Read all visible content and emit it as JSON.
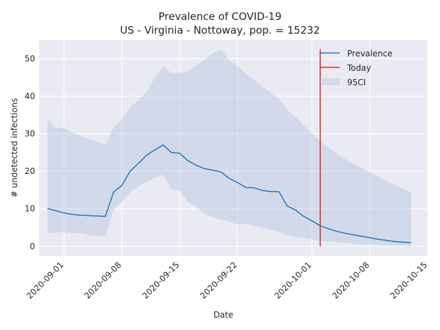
{
  "chart_data": {
    "type": "line",
    "title": "Prevalence of COVID-19",
    "subtitle": "US - Virginia - Nottoway, pop. = 15232",
    "xlabel": "Date",
    "ylabel": "# undetected infections",
    "xlim": [
      "2020-08-29",
      "2020-10-15"
    ],
    "ylim": [
      -2.5,
      55
    ],
    "grid": true,
    "legend_position": "top-right",
    "x_ticks": [
      "2020-09-01",
      "2020-09-08",
      "2020-09-15",
      "2020-09-22",
      "2020-10-01",
      "2020-10-08",
      "2020-10-15"
    ],
    "y_ticks": [
      0,
      10,
      20,
      30,
      40,
      50
    ],
    "series": [
      {
        "name": "Prevalence",
        "color": "#1f77b4",
        "x": [
          "2020-08-30",
          "2020-08-31",
          "2020-09-01",
          "2020-09-02",
          "2020-09-03",
          "2020-09-04",
          "2020-09-05",
          "2020-09-06",
          "2020-09-07",
          "2020-09-08",
          "2020-09-09",
          "2020-09-10",
          "2020-09-11",
          "2020-09-12",
          "2020-09-13",
          "2020-09-14",
          "2020-09-15",
          "2020-09-16",
          "2020-09-17",
          "2020-09-18",
          "2020-09-19",
          "2020-09-20",
          "2020-09-21",
          "2020-09-22",
          "2020-09-23",
          "2020-09-24",
          "2020-09-25",
          "2020-09-26",
          "2020-09-27",
          "2020-09-28",
          "2020-09-29",
          "2020-09-30",
          "2020-10-01",
          "2020-10-02",
          "2020-10-03",
          "2020-10-04",
          "2020-10-05",
          "2020-10-06",
          "2020-10-07",
          "2020-10-08",
          "2020-10-09",
          "2020-10-10",
          "2020-10-11",
          "2020-10-12",
          "2020-10-13"
        ],
        "values": [
          10.1,
          9.5,
          8.9,
          8.5,
          8.3,
          8.2,
          8.1,
          8.0,
          14.5,
          16.2,
          20.0,
          22.1,
          24.3,
          25.7,
          27.0,
          25.0,
          24.8,
          22.8,
          21.6,
          20.7,
          20.3,
          19.8,
          18.1,
          17.0,
          15.7,
          15.6,
          14.9,
          14.6,
          14.6,
          10.8,
          9.7,
          8.0,
          6.8,
          5.5,
          4.7,
          4.0,
          3.5,
          3.1,
          2.7,
          2.3,
          1.9,
          1.6,
          1.3,
          1.1,
          1.0
        ]
      },
      {
        "name": "Today",
        "color": "#d62728",
        "x": "2020-10-02",
        "y_range": [
          0,
          52.5
        ]
      },
      {
        "name": "95CI",
        "color": "#b0c4de",
        "x": [
          "2020-08-30",
          "2020-08-31",
          "2020-09-01",
          "2020-09-02",
          "2020-09-03",
          "2020-09-04",
          "2020-09-05",
          "2020-09-06",
          "2020-09-07",
          "2020-09-08",
          "2020-09-09",
          "2020-09-10",
          "2020-09-11",
          "2020-09-12",
          "2020-09-13",
          "2020-09-14",
          "2020-09-15",
          "2020-09-16",
          "2020-09-17",
          "2020-09-18",
          "2020-09-19",
          "2020-09-20",
          "2020-09-21",
          "2020-09-22",
          "2020-09-23",
          "2020-09-24",
          "2020-09-25",
          "2020-09-26",
          "2020-09-27",
          "2020-09-28",
          "2020-09-29",
          "2020-09-30",
          "2020-10-01",
          "2020-10-02",
          "2020-10-03",
          "2020-10-04",
          "2020-10-05",
          "2020-10-06",
          "2020-10-07",
          "2020-10-08",
          "2020-10-09",
          "2020-10-10",
          "2020-10-11",
          "2020-10-12",
          "2020-10-13"
        ],
        "upper": [
          34.2,
          31.5,
          31.6,
          30.2,
          29.6,
          28.6,
          27.9,
          27.0,
          31.7,
          33.8,
          36.9,
          39.0,
          41.1,
          45.0,
          47.9,
          46.2,
          46.3,
          46.5,
          48.2,
          49.7,
          51.5,
          52.5,
          49.5,
          48.0,
          46.0,
          44.3,
          42.6,
          40.9,
          39.4,
          36.4,
          34.5,
          32.2,
          30.0,
          28.0,
          26.3,
          24.8,
          23.3,
          22.0,
          20.9,
          19.7,
          18.6,
          17.5,
          16.4,
          15.4,
          14.4
        ],
        "lower": [
          3.5,
          3.7,
          3.8,
          3.6,
          3.4,
          3.0,
          2.8,
          2.7,
          9.7,
          11.8,
          14.4,
          15.9,
          17.3,
          18.2,
          19.1,
          15.1,
          14.8,
          11.7,
          10.6,
          8.7,
          7.9,
          7.0,
          6.6,
          5.8,
          6.0,
          5.5,
          5.0,
          4.4,
          3.9,
          2.9,
          2.5,
          2.2,
          1.9,
          1.5,
          1.3,
          1.1,
          0.9,
          0.7,
          0.6,
          0.5,
          0.4,
          0.3,
          0.3,
          0.2,
          0.2
        ]
      }
    ]
  }
}
